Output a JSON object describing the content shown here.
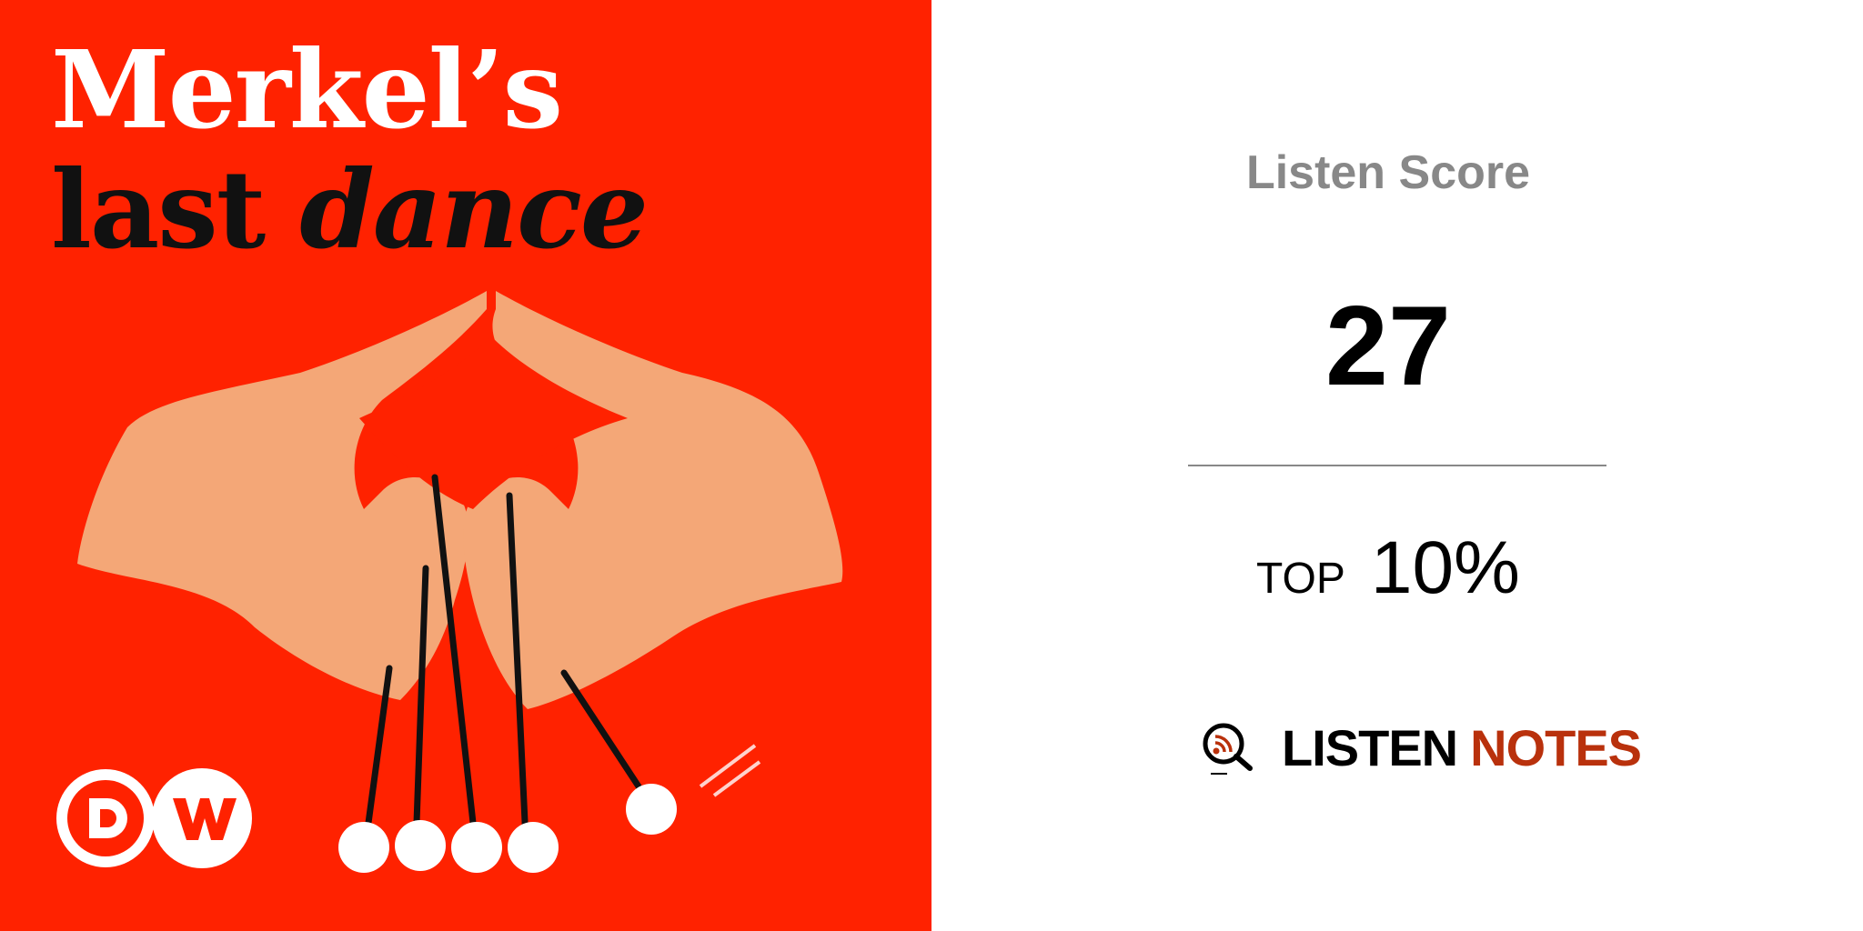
{
  "cover": {
    "title_line1": "Merkel’s",
    "title_line2_plain": "last ",
    "title_line2_italic": "dance",
    "publisher_logo": "DW",
    "background_color": "#ff2200"
  },
  "score_card": {
    "label": "Listen Score",
    "score": "27",
    "rank_label": "TOP",
    "rank_value": "10%",
    "brand_word1": "LISTEN",
    "brand_word2": "NOTES",
    "brand_accent_color": "#b9310c",
    "brand_icon": "magnifier-podcast-icon"
  }
}
